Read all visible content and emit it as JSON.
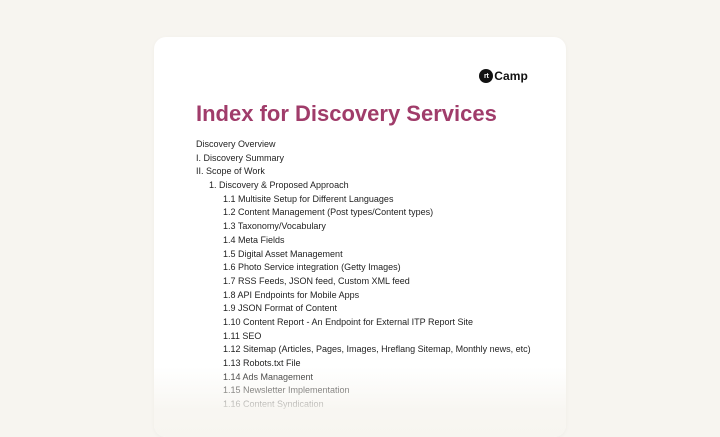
{
  "logo": {
    "mark": "rt",
    "word": "Camp"
  },
  "document": {
    "title": "Index for Discovery Services"
  },
  "toc": [
    {
      "text": "Discovery Overview",
      "level": 0
    },
    {
      "text": "I. Discovery Summary",
      "level": 0
    },
    {
      "text": "II. Scope of Work",
      "level": 0
    },
    {
      "text": "1. Discovery & Proposed Approach",
      "level": 1
    },
    {
      "text": "1.1 Multisite Setup for Different Languages",
      "level": 2
    },
    {
      "text": "1.2 Content Management (Post types/Content types)",
      "level": 2
    },
    {
      "text": "1.3 Taxonomy/Vocabulary",
      "level": 2
    },
    {
      "text": "1.4 Meta Fields",
      "level": 2
    },
    {
      "text": "1.5 Digital Asset Management",
      "level": 2
    },
    {
      "text": "1.6 Photo Service integration (Getty Images)",
      "level": 2
    },
    {
      "text": "1.7 RSS Feeds, JSON feed, Custom XML feed",
      "level": 2
    },
    {
      "text": "1.8 API Endpoints for Mobile Apps",
      "level": 2
    },
    {
      "text": "1.9 JSON Format of Content",
      "level": 2
    },
    {
      "text": "1.10 Content Report - An Endpoint for External ITP Report Site",
      "level": 2
    },
    {
      "text": "1.11 SEO",
      "level": 2
    },
    {
      "text": "1.12 Sitemap (Articles, Pages, Images, Hreflang Sitemap, Monthly news, etc)",
      "level": 2
    },
    {
      "text": "1.13 Robots.txt File",
      "level": 2
    },
    {
      "text": "1.14 Ads Management",
      "level": 2
    },
    {
      "text": "1.15 Newsletter Implementation",
      "level": 2
    },
    {
      "text": "1.16 Content Syndication",
      "level": 2
    }
  ]
}
